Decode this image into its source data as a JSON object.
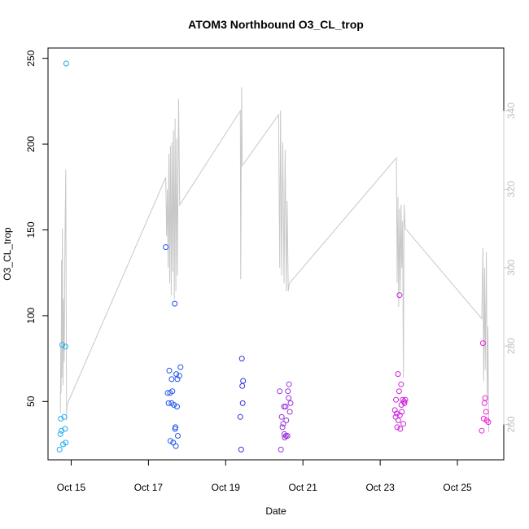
{
  "chart_data": {
    "type": "scatter",
    "title": "ATOM3 Northbound O3_CL_trop",
    "xlabel": "Date",
    "ylabel": "O3_CL_trop",
    "x_ticks": [
      {
        "label": "Oct 15",
        "value": 15
      },
      {
        "label": "Oct 17",
        "value": 17
      },
      {
        "label": "Oct 19",
        "value": 19
      },
      {
        "label": "Oct 21",
        "value": 21
      },
      {
        "label": "Oct 23",
        "value": 23
      },
      {
        "label": "Oct 25",
        "value": 25
      }
    ],
    "xlim": [
      14.4,
      26.2
    ],
    "ylim": [
      16,
      256
    ],
    "y_ticks": [
      50,
      100,
      150,
      200,
      250
    ],
    "secondary_y": {
      "ylim": [
        251,
        356
      ],
      "ticks": [
        260,
        280,
        300,
        320,
        340
      ],
      "color": "#c8c8c8"
    },
    "grid": false,
    "series": [
      {
        "values": [
          {
            "x": 14.7,
            "y": 22
          },
          {
            "x": 14.72,
            "y": 31
          },
          {
            "x": 14.73,
            "y": 40
          },
          {
            "x": 14.75,
            "y": 33
          },
          {
            "x": 14.77,
            "y": 83
          },
          {
            "x": 14.79,
            "y": 25
          },
          {
            "x": 14.82,
            "y": 41
          },
          {
            "x": 14.84,
            "y": 34
          },
          {
            "x": 14.85,
            "y": 82
          },
          {
            "x": 14.86,
            "y": 26
          },
          {
            "x": 14.87,
            "y": 247
          }
        ],
        "color": "#22aaf0"
      },
      {
        "values": [
          {
            "x": 17.45,
            "y": 140
          },
          {
            "x": 17.5,
            "y": 55
          },
          {
            "x": 17.52,
            "y": 49
          },
          {
            "x": 17.54,
            "y": 68
          },
          {
            "x": 17.56,
            "y": 55
          },
          {
            "x": 17.57,
            "y": 27
          },
          {
            "x": 17.6,
            "y": 63
          },
          {
            "x": 17.6,
            "y": 49
          },
          {
            "x": 17.62,
            "y": 56
          },
          {
            "x": 17.64,
            "y": 26
          },
          {
            "x": 17.66,
            "y": 48
          },
          {
            "x": 17.68,
            "y": 107
          },
          {
            "x": 17.69,
            "y": 34
          },
          {
            "x": 17.7,
            "y": 35
          },
          {
            "x": 17.71,
            "y": 24
          },
          {
            "x": 17.72,
            "y": 66
          },
          {
            "x": 17.74,
            "y": 47
          },
          {
            "x": 17.75,
            "y": 63
          },
          {
            "x": 17.76,
            "y": 30
          },
          {
            "x": 17.8,
            "y": 65
          },
          {
            "x": 17.83,
            "y": 70
          }
        ],
        "color": "#2255ee"
      },
      {
        "values": [
          {
            "x": 19.38,
            "y": 41
          },
          {
            "x": 19.4,
            "y": 22
          },
          {
            "x": 19.42,
            "y": 75
          },
          {
            "x": 19.43,
            "y": 59
          },
          {
            "x": 19.44,
            "y": 49
          },
          {
            "x": 19.45,
            "y": 62
          }
        ],
        "color": "#3333dd"
      },
      {
        "values": [
          {
            "x": 20.4,
            "y": 56
          },
          {
            "x": 20.43,
            "y": 22
          },
          {
            "x": 20.45,
            "y": 41
          },
          {
            "x": 20.47,
            "y": 35
          },
          {
            "x": 20.49,
            "y": 37
          },
          {
            "x": 20.51,
            "y": 47
          },
          {
            "x": 20.52,
            "y": 31
          },
          {
            "x": 20.53,
            "y": 29
          },
          {
            "x": 20.55,
            "y": 47
          },
          {
            "x": 20.56,
            "y": 30
          },
          {
            "x": 20.57,
            "y": 39
          },
          {
            "x": 20.6,
            "y": 30
          },
          {
            "x": 20.61,
            "y": 56
          },
          {
            "x": 20.63,
            "y": 52
          },
          {
            "x": 20.64,
            "y": 60
          },
          {
            "x": 20.66,
            "y": 44
          },
          {
            "x": 20.68,
            "y": 49
          }
        ],
        "color": "#9933dd"
      },
      {
        "values": [
          {
            "x": 23.38,
            "y": 45
          },
          {
            "x": 23.4,
            "y": 41
          },
          {
            "x": 23.41,
            "y": 51
          },
          {
            "x": 23.43,
            "y": 43
          },
          {
            "x": 23.44,
            "y": 35
          },
          {
            "x": 23.46,
            "y": 66
          },
          {
            "x": 23.47,
            "y": 39
          },
          {
            "x": 23.49,
            "y": 56
          },
          {
            "x": 23.5,
            "y": 112
          },
          {
            "x": 23.51,
            "y": 42
          },
          {
            "x": 23.52,
            "y": 34
          },
          {
            "x": 23.54,
            "y": 60
          },
          {
            "x": 23.55,
            "y": 48
          },
          {
            "x": 23.56,
            "y": 44
          },
          {
            "x": 23.58,
            "y": 51
          },
          {
            "x": 23.6,
            "y": 37
          },
          {
            "x": 23.62,
            "y": 50
          },
          {
            "x": 23.63,
            "y": 49
          },
          {
            "x": 23.65,
            "y": 51
          }
        ],
        "color": "#cc22dd"
      },
      {
        "values": [
          {
            "x": 25.63,
            "y": 33
          },
          {
            "x": 25.66,
            "y": 84
          },
          {
            "x": 25.68,
            "y": 40
          },
          {
            "x": 25.7,
            "y": 49
          },
          {
            "x": 25.72,
            "y": 52
          },
          {
            "x": 25.74,
            "y": 44
          },
          {
            "x": 25.76,
            "y": 39
          },
          {
            "x": 25.8,
            "y": 38
          }
        ],
        "color": "#ee22dd"
      }
    ],
    "line_series": {
      "color": "#c8c8c8",
      "axis": "secondary",
      "values": [
        {
          "x": 14.72,
          "y": 263
        },
        {
          "x": 14.73,
          "y": 280
        },
        {
          "x": 14.74,
          "y": 268
        },
        {
          "x": 14.75,
          "y": 302
        },
        {
          "x": 14.76,
          "y": 272
        },
        {
          "x": 14.77,
          "y": 310
        },
        {
          "x": 14.79,
          "y": 270
        },
        {
          "x": 14.8,
          "y": 292
        },
        {
          "x": 14.82,
          "y": 276
        },
        {
          "x": 14.84,
          "y": 308
        },
        {
          "x": 14.86,
          "y": 325
        },
        {
          "x": 14.88,
          "y": 261
        },
        {
          "x": 14.89,
          "y": 265
        },
        {
          "x": 17.45,
          "y": 323
        },
        {
          "x": 17.47,
          "y": 308
        },
        {
          "x": 17.49,
          "y": 320
        },
        {
          "x": 17.51,
          "y": 300
        },
        {
          "x": 17.53,
          "y": 329
        },
        {
          "x": 17.55,
          "y": 296
        },
        {
          "x": 17.57,
          "y": 331
        },
        {
          "x": 17.59,
          "y": 293
        },
        {
          "x": 17.61,
          "y": 332
        },
        {
          "x": 17.63,
          "y": 299
        },
        {
          "x": 17.65,
          "y": 335
        },
        {
          "x": 17.67,
          "y": 292
        },
        {
          "x": 17.69,
          "y": 338
        },
        {
          "x": 17.71,
          "y": 294
        },
        {
          "x": 17.73,
          "y": 333
        },
        {
          "x": 17.75,
          "y": 298
        },
        {
          "x": 17.78,
          "y": 343
        },
        {
          "x": 17.81,
          "y": 316
        },
        {
          "x": 19.38,
          "y": 340
        },
        {
          "x": 19.39,
          "y": 297
        },
        {
          "x": 19.41,
          "y": 346
        },
        {
          "x": 19.43,
          "y": 326
        },
        {
          "x": 20.37,
          "y": 339
        },
        {
          "x": 20.4,
          "y": 300
        },
        {
          "x": 20.42,
          "y": 340
        },
        {
          "x": 20.45,
          "y": 298
        },
        {
          "x": 20.48,
          "y": 332
        },
        {
          "x": 20.51,
          "y": 296
        },
        {
          "x": 20.54,
          "y": 330
        },
        {
          "x": 20.57,
          "y": 294
        },
        {
          "x": 20.59,
          "y": 317
        },
        {
          "x": 20.62,
          "y": 294
        },
        {
          "x": 20.65,
          "y": 296
        },
        {
          "x": 23.42,
          "y": 328
        },
        {
          "x": 23.44,
          "y": 296
        },
        {
          "x": 23.46,
          "y": 318
        },
        {
          "x": 23.48,
          "y": 290
        },
        {
          "x": 23.5,
          "y": 315
        },
        {
          "x": 23.52,
          "y": 294
        },
        {
          "x": 23.54,
          "y": 316
        },
        {
          "x": 23.56,
          "y": 300
        },
        {
          "x": 23.58,
          "y": 312
        },
        {
          "x": 23.6,
          "y": 272
        },
        {
          "x": 23.62,
          "y": 316
        },
        {
          "x": 23.65,
          "y": 310
        },
        {
          "x": 25.63,
          "y": 287
        },
        {
          "x": 25.66,
          "y": 305
        },
        {
          "x": 25.68,
          "y": 271
        },
        {
          "x": 25.7,
          "y": 300
        },
        {
          "x": 25.72,
          "y": 274
        },
        {
          "x": 25.75,
          "y": 304
        },
        {
          "x": 25.77,
          "y": 266
        },
        {
          "x": 25.79,
          "y": 285
        },
        {
          "x": 25.81,
          "y": 258
        }
      ]
    }
  }
}
